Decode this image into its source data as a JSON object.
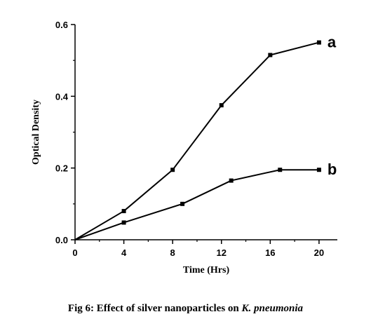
{
  "chart_data": {
    "type": "line",
    "title": "",
    "xlabel": "Time (Hrs)",
    "ylabel": "Optical Density",
    "xlim": [
      0,
      21.5
    ],
    "ylim": [
      0,
      0.6
    ],
    "xticks": [
      0,
      4,
      8,
      12,
      16,
      20
    ],
    "yticks": [
      0.0,
      0.2,
      0.4,
      0.6
    ],
    "xtick_labels": [
      "0",
      "4",
      "8",
      "12",
      "16",
      "20"
    ],
    "ytick_labels": [
      "0.0",
      "0.2",
      "0.4",
      "0.6"
    ],
    "grid": false,
    "legend": "none",
    "series": [
      {
        "name": "a",
        "x": [
          0,
          4,
          8,
          12,
          16,
          20
        ],
        "y": [
          0.0,
          0.08,
          0.195,
          0.375,
          0.515,
          0.55
        ]
      },
      {
        "name": "b",
        "x": [
          0,
          4,
          8.8,
          12.8,
          16.8,
          20
        ],
        "y": [
          0.0,
          0.048,
          0.1,
          0.165,
          0.195,
          0.195
        ]
      }
    ],
    "colors": {
      "line": "#000000",
      "marker": "#000000"
    }
  },
  "caption": {
    "prefix": "Fig 6: Effect of silver nanoparticles on ",
    "species": "K. pneumonia"
  }
}
